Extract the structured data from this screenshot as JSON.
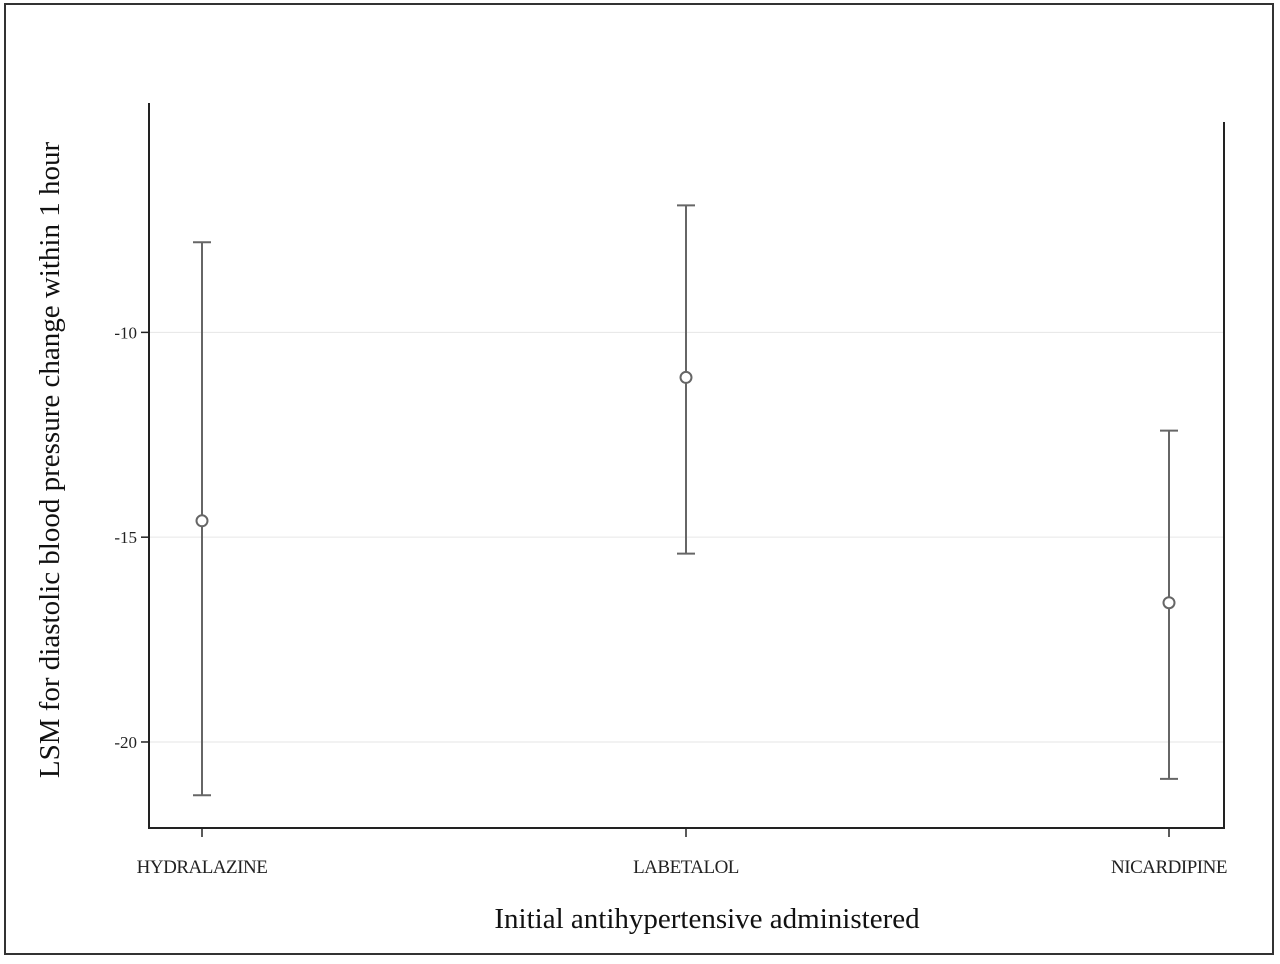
{
  "chart_data": {
    "type": "scatter",
    "subtype": "point-with-error-bars",
    "title": "",
    "xlabel": "Initial antihypertensive administered",
    "ylabel": "LSM for diastolic blood pressure change within 1 hour",
    "categories": [
      "HYDRALAZINE",
      "LABETALOL",
      "NICARDIPINE"
    ],
    "series": [
      {
        "estimates": [
          -14.6,
          -11.1,
          -16.6
        ],
        "lower": [
          -21.3,
          -15.4,
          -20.9
        ],
        "upper": [
          -7.8,
          -6.9,
          -12.4
        ]
      }
    ],
    "yticks": [
      -10,
      -15,
      -20
    ],
    "ytick_labels": [
      "-10",
      "-15",
      "-20"
    ],
    "ylim": [
      -22.1,
      -4.4
    ],
    "grid": "horizontal",
    "colors": {
      "marker": "#666666",
      "axis": "#222222",
      "grid": "#e6e6e6"
    }
  }
}
